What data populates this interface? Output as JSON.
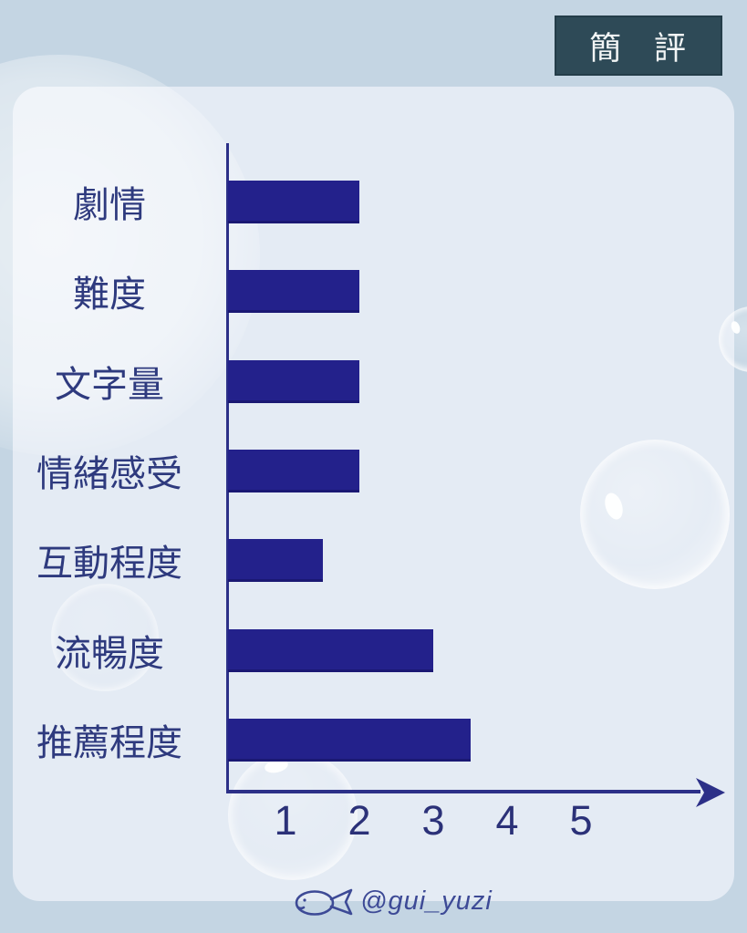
{
  "badge": {
    "label": "簡 評"
  },
  "signature": {
    "handle": "@gui_yuzi",
    "icon": "fish-doodle-icon"
  },
  "chart_data": {
    "type": "bar",
    "orientation": "horizontal",
    "title": "",
    "categories": [
      "劇情",
      "難度",
      "文字量",
      "情緒感受",
      "互動程度",
      "流暢度",
      "推薦程度"
    ],
    "values": [
      2,
      2,
      2,
      2,
      1.5,
      3,
      3.5
    ],
    "xlim": [
      0,
      5
    ],
    "x_ticks": [
      "1",
      "2",
      "3",
      "4",
      "5"
    ],
    "grid": false,
    "legend": false,
    "bar_color": "#23218b",
    "axis_color": "#2c3088",
    "label_color": "#2e3a7e",
    "tick_color": "#2b3178"
  },
  "colors": {
    "outer_background": "#c4d5e3",
    "panel_background": "#e4ebf4",
    "badge_background": "#2e4a57",
    "badge_text": "#f2f5f5",
    "signature_text": "#3d4a96"
  }
}
